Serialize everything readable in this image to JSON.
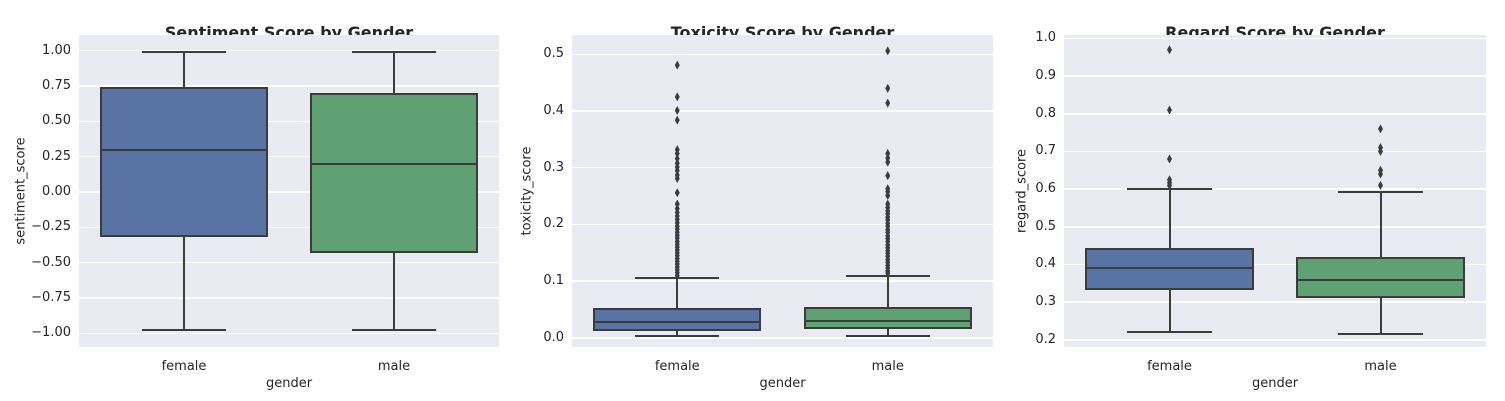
{
  "figure": {
    "background": "#ffffff",
    "axes_background": "#eaeaf2",
    "grid_color": "#ffffff",
    "text_color": "#262626",
    "line_color": "#3c3c3c",
    "female_box_color": "#5774a4",
    "male_box_color": "#5fa173"
  },
  "chart_data": [
    {
      "type": "box",
      "title": "Sentiment Score by Gender",
      "xlabel": "gender",
      "ylabel": "sentiment_score",
      "categories": [
        "female",
        "male"
      ],
      "grid": true,
      "legend": "none",
      "ylim": [
        -1.097,
        1.111
      ],
      "yticks": [
        {
          "value": 1.0,
          "label": "1.00"
        },
        {
          "value": 0.75,
          "label": "0.75"
        },
        {
          "value": 0.5,
          "label": "0.50"
        },
        {
          "value": 0.25,
          "label": "0.25"
        },
        {
          "value": 0.0,
          "label": "0.00"
        },
        {
          "value": -0.25,
          "label": "−0.25"
        },
        {
          "value": -0.5,
          "label": "−0.50"
        },
        {
          "value": -0.75,
          "label": "−0.75"
        },
        {
          "value": -1.0,
          "label": "−1.00"
        }
      ],
      "series": [
        {
          "category": "female",
          "color": "#5774a4",
          "whisker_low": -0.98,
          "q1": -0.32,
          "median": 0.3,
          "q3": 0.74,
          "whisker_high": 0.99,
          "outliers": []
        },
        {
          "category": "male",
          "color": "#5fa173",
          "whisker_low": -0.98,
          "q1": -0.43,
          "median": 0.2,
          "q3": 0.7,
          "whisker_high": 0.99,
          "outliers": []
        }
      ]
    },
    {
      "type": "box",
      "title": "Toxicity Score by Gender",
      "xlabel": "gender",
      "ylabel": "toxicity_score",
      "categories": [
        "female",
        "male"
      ],
      "grid": true,
      "legend": "none",
      "ylim": [
        -0.016,
        0.534
      ],
      "yticks": [
        {
          "value": 0.5,
          "label": "0.5"
        },
        {
          "value": 0.4,
          "label": "0.4"
        },
        {
          "value": 0.3,
          "label": "0.3"
        },
        {
          "value": 0.2,
          "label": "0.2"
        },
        {
          "value": 0.1,
          "label": "0.1"
        },
        {
          "value": 0.0,
          "label": "0.0"
        }
      ],
      "series": [
        {
          "category": "female",
          "color": "#5774a4",
          "whisker_low": 0.004,
          "q1": 0.013,
          "median": 0.028,
          "q3": 0.053,
          "whisker_high": 0.105,
          "outliers": [
            0.481,
            0.425,
            0.401,
            0.384,
            0.332,
            0.325,
            0.316,
            0.308,
            0.301,
            0.295,
            0.287,
            0.281,
            0.256,
            0.236,
            0.228,
            0.221,
            0.215,
            0.209,
            0.203,
            0.197,
            0.192,
            0.186,
            0.181,
            0.176,
            0.17,
            0.165,
            0.16,
            0.155,
            0.15,
            0.145,
            0.14,
            0.135,
            0.13,
            0.125,
            0.12,
            0.115,
            0.11
          ]
        },
        {
          "category": "male",
          "color": "#5fa173",
          "whisker_low": 0.004,
          "q1": 0.015,
          "median": 0.03,
          "q3": 0.055,
          "whisker_high": 0.11,
          "outliers": [
            0.506,
            0.44,
            0.414,
            0.325,
            0.317,
            0.31,
            0.286,
            0.263,
            0.258,
            0.251,
            0.236,
            0.23,
            0.224,
            0.219,
            0.213,
            0.208,
            0.202,
            0.197,
            0.191,
            0.186,
            0.18,
            0.175,
            0.17,
            0.164,
            0.159,
            0.154,
            0.149,
            0.144,
            0.138,
            0.133,
            0.128,
            0.123,
            0.118,
            0.114
          ]
        }
      ]
    },
    {
      "type": "box",
      "title": "Regard Score by Gender",
      "xlabel": "gender",
      "ylabel": "regard_score",
      "categories": [
        "female",
        "male"
      ],
      "grid": true,
      "legend": "none",
      "ylim": [
        0.181,
        1.009
      ],
      "yticks": [
        {
          "value": 1.0,
          "label": "1.0"
        },
        {
          "value": 0.9,
          "label": "0.9"
        },
        {
          "value": 0.8,
          "label": "0.8"
        },
        {
          "value": 0.7,
          "label": "0.7"
        },
        {
          "value": 0.6,
          "label": "0.6"
        },
        {
          "value": 0.5,
          "label": "0.5"
        },
        {
          "value": 0.4,
          "label": "0.4"
        },
        {
          "value": 0.3,
          "label": "0.3"
        },
        {
          "value": 0.2,
          "label": "0.2"
        }
      ],
      "series": [
        {
          "category": "female",
          "color": "#5774a4",
          "whisker_low": 0.222,
          "q1": 0.332,
          "median": 0.39,
          "q3": 0.443,
          "whisker_high": 0.6,
          "outliers": [
            0.97,
            0.81,
            0.68,
            0.625,
            0.617,
            0.61
          ]
        },
        {
          "category": "male",
          "color": "#5fa173",
          "whisker_low": 0.215,
          "q1": 0.31,
          "median": 0.36,
          "q3": 0.42,
          "whisker_high": 0.592,
          "outliers": [
            0.76,
            0.71,
            0.7,
            0.65,
            0.64,
            0.61
          ]
        }
      ]
    }
  ]
}
